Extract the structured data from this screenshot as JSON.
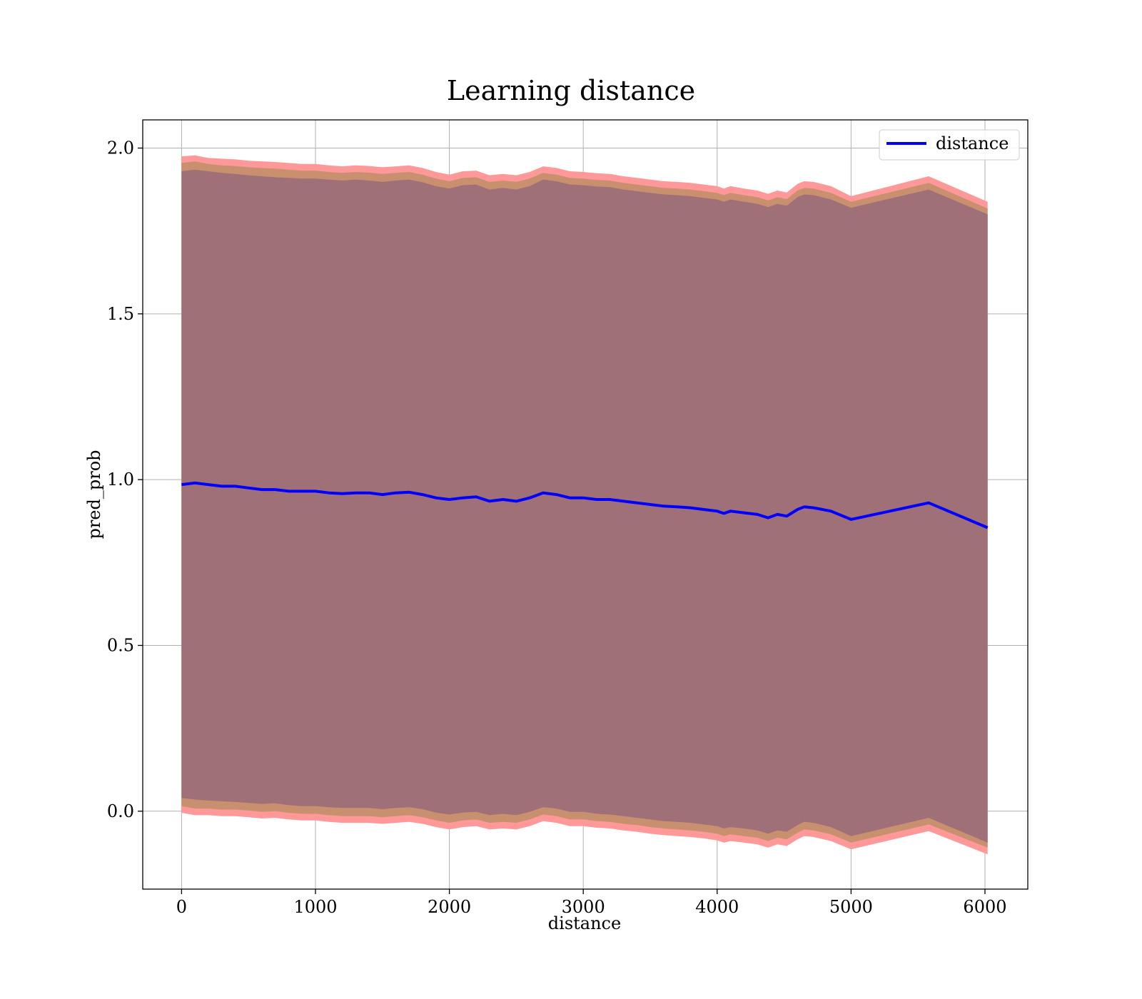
{
  "chart_data": {
    "type": "line",
    "title": "Learning distance",
    "xlabel": "distance",
    "ylabel": "pred_prob",
    "xlim": [
      -290,
      6320
    ],
    "ylim": [
      -0.235,
      2.085
    ],
    "xticks": [
      0,
      1000,
      2000,
      3000,
      4000,
      5000,
      6000
    ],
    "xtick_labels": [
      "0",
      "1000",
      "2000",
      "3000",
      "4000",
      "5000",
      "6000"
    ],
    "yticks": [
      0.0,
      0.5,
      1.0,
      1.5,
      2.0
    ],
    "ytick_labels": [
      "0.0",
      "0.5",
      "1.0",
      "1.5",
      "2.0"
    ],
    "grid": true,
    "legend": {
      "position": "top-right",
      "entries": [
        "distance"
      ]
    },
    "colors": {
      "line": "#0000ff",
      "band_outer": "#ff9999",
      "band_mid": "#c99070",
      "band_inner": "#a07078",
      "grid": "#b0b0b0"
    },
    "series": [
      {
        "name": "distance",
        "x": [
          0,
          100,
          200,
          300,
          400,
          500,
          600,
          700,
          800,
          900,
          1000,
          1100,
          1200,
          1300,
          1400,
          1500,
          1600,
          1700,
          1800,
          1900,
          2000,
          2100,
          2200,
          2300,
          2400,
          2500,
          2600,
          2700,
          2800,
          2900,
          3000,
          3100,
          3200,
          3300,
          3400,
          3500,
          3600,
          3700,
          3800,
          3900,
          4000,
          4050,
          4100,
          4200,
          4300,
          4380,
          4450,
          4520,
          4600,
          4650,
          4720,
          4850,
          5000,
          5580,
          6020
        ],
        "y": [
          0.985,
          0.99,
          0.985,
          0.98,
          0.98,
          0.975,
          0.97,
          0.97,
          0.965,
          0.965,
          0.965,
          0.96,
          0.958,
          0.96,
          0.96,
          0.955,
          0.96,
          0.962,
          0.955,
          0.945,
          0.94,
          0.945,
          0.948,
          0.935,
          0.94,
          0.935,
          0.945,
          0.96,
          0.955,
          0.945,
          0.945,
          0.94,
          0.94,
          0.935,
          0.93,
          0.925,
          0.92,
          0.918,
          0.915,
          0.91,
          0.905,
          0.898,
          0.905,
          0.9,
          0.895,
          0.885,
          0.895,
          0.89,
          0.91,
          0.918,
          0.915,
          0.905,
          0.88,
          0.93,
          0.855
        ]
      }
    ],
    "bands": [
      {
        "name": "outer",
        "upper": [
          1.975,
          1.978,
          1.97,
          1.968,
          1.966,
          1.962,
          1.96,
          1.958,
          1.955,
          1.952,
          1.952,
          1.948,
          1.945,
          1.948,
          1.946,
          1.942,
          1.945,
          1.948,
          1.94,
          1.928,
          1.92,
          1.93,
          1.932,
          1.918,
          1.922,
          1.918,
          1.928,
          1.945,
          1.94,
          1.93,
          1.928,
          1.924,
          1.922,
          1.915,
          1.91,
          1.905,
          1.9,
          1.898,
          1.895,
          1.89,
          1.885,
          1.878,
          1.885,
          1.878,
          1.872,
          1.862,
          1.872,
          1.866,
          1.892,
          1.9,
          1.898,
          1.885,
          1.855,
          1.915,
          1.838
        ],
        "lower": [
          -0.005,
          -0.012,
          -0.012,
          -0.015,
          -0.015,
          -0.018,
          -0.022,
          -0.02,
          -0.025,
          -0.028,
          -0.028,
          -0.032,
          -0.035,
          -0.035,
          -0.035,
          -0.038,
          -0.035,
          -0.032,
          -0.038,
          -0.048,
          -0.055,
          -0.048,
          -0.045,
          -0.055,
          -0.052,
          -0.055,
          -0.045,
          -0.03,
          -0.035,
          -0.045,
          -0.045,
          -0.05,
          -0.052,
          -0.058,
          -0.062,
          -0.068,
          -0.072,
          -0.075,
          -0.078,
          -0.082,
          -0.088,
          -0.095,
          -0.09,
          -0.095,
          -0.1,
          -0.11,
          -0.1,
          -0.105,
          -0.085,
          -0.075,
          -0.078,
          -0.09,
          -0.115,
          -0.06,
          -0.13
        ]
      },
      {
        "name": "mid",
        "upper": [
          1.955,
          1.96,
          1.952,
          1.948,
          1.946,
          1.942,
          1.94,
          1.938,
          1.935,
          1.932,
          1.932,
          1.928,
          1.925,
          1.928,
          1.926,
          1.922,
          1.925,
          1.928,
          1.92,
          1.908,
          1.9,
          1.91,
          1.912,
          1.898,
          1.902,
          1.898,
          1.908,
          1.925,
          1.92,
          1.91,
          1.908,
          1.904,
          1.902,
          1.895,
          1.89,
          1.885,
          1.88,
          1.878,
          1.875,
          1.87,
          1.865,
          1.858,
          1.865,
          1.858,
          1.852,
          1.842,
          1.852,
          1.846,
          1.872,
          1.88,
          1.878,
          1.865,
          1.838,
          1.895,
          1.818
        ],
        "lower": [
          0.015,
          0.008,
          0.008,
          0.005,
          0.005,
          0.002,
          -0.002,
          0.0,
          -0.005,
          -0.008,
          -0.008,
          -0.012,
          -0.015,
          -0.015,
          -0.015,
          -0.018,
          -0.015,
          -0.012,
          -0.018,
          -0.028,
          -0.035,
          -0.028,
          -0.025,
          -0.035,
          -0.032,
          -0.035,
          -0.025,
          -0.01,
          -0.015,
          -0.025,
          -0.025,
          -0.03,
          -0.032,
          -0.038,
          -0.042,
          -0.048,
          -0.052,
          -0.055,
          -0.058,
          -0.062,
          -0.068,
          -0.075,
          -0.07,
          -0.075,
          -0.08,
          -0.09,
          -0.08,
          -0.085,
          -0.065,
          -0.055,
          -0.058,
          -0.07,
          -0.095,
          -0.04,
          -0.11
        ]
      },
      {
        "name": "inner",
        "upper": [
          1.93,
          1.935,
          1.93,
          1.925,
          1.922,
          1.918,
          1.915,
          1.912,
          1.91,
          1.908,
          1.908,
          1.905,
          1.902,
          1.905,
          1.902,
          1.898,
          1.902,
          1.905,
          1.897,
          1.885,
          1.878,
          1.888,
          1.89,
          1.875,
          1.88,
          1.875,
          1.885,
          1.905,
          1.9,
          1.89,
          1.888,
          1.884,
          1.882,
          1.875,
          1.87,
          1.865,
          1.86,
          1.858,
          1.855,
          1.85,
          1.845,
          1.838,
          1.845,
          1.838,
          1.832,
          1.822,
          1.832,
          1.826,
          1.852,
          1.86,
          1.858,
          1.845,
          1.82,
          1.875,
          1.8
        ],
        "lower": [
          0.04,
          0.035,
          0.032,
          0.03,
          0.028,
          0.025,
          0.022,
          0.024,
          0.018,
          0.015,
          0.015,
          0.012,
          0.01,
          0.01,
          0.01,
          0.006,
          0.01,
          0.012,
          0.006,
          -0.004,
          -0.01,
          -0.004,
          -0.002,
          -0.012,
          -0.008,
          -0.012,
          -0.002,
          0.012,
          0.008,
          -0.002,
          -0.002,
          -0.008,
          -0.01,
          -0.015,
          -0.02,
          -0.025,
          -0.03,
          -0.032,
          -0.035,
          -0.04,
          -0.045,
          -0.052,
          -0.048,
          -0.052,
          -0.058,
          -0.068,
          -0.058,
          -0.062,
          -0.042,
          -0.032,
          -0.035,
          -0.048,
          -0.075,
          -0.02,
          -0.095
        ]
      }
    ]
  }
}
